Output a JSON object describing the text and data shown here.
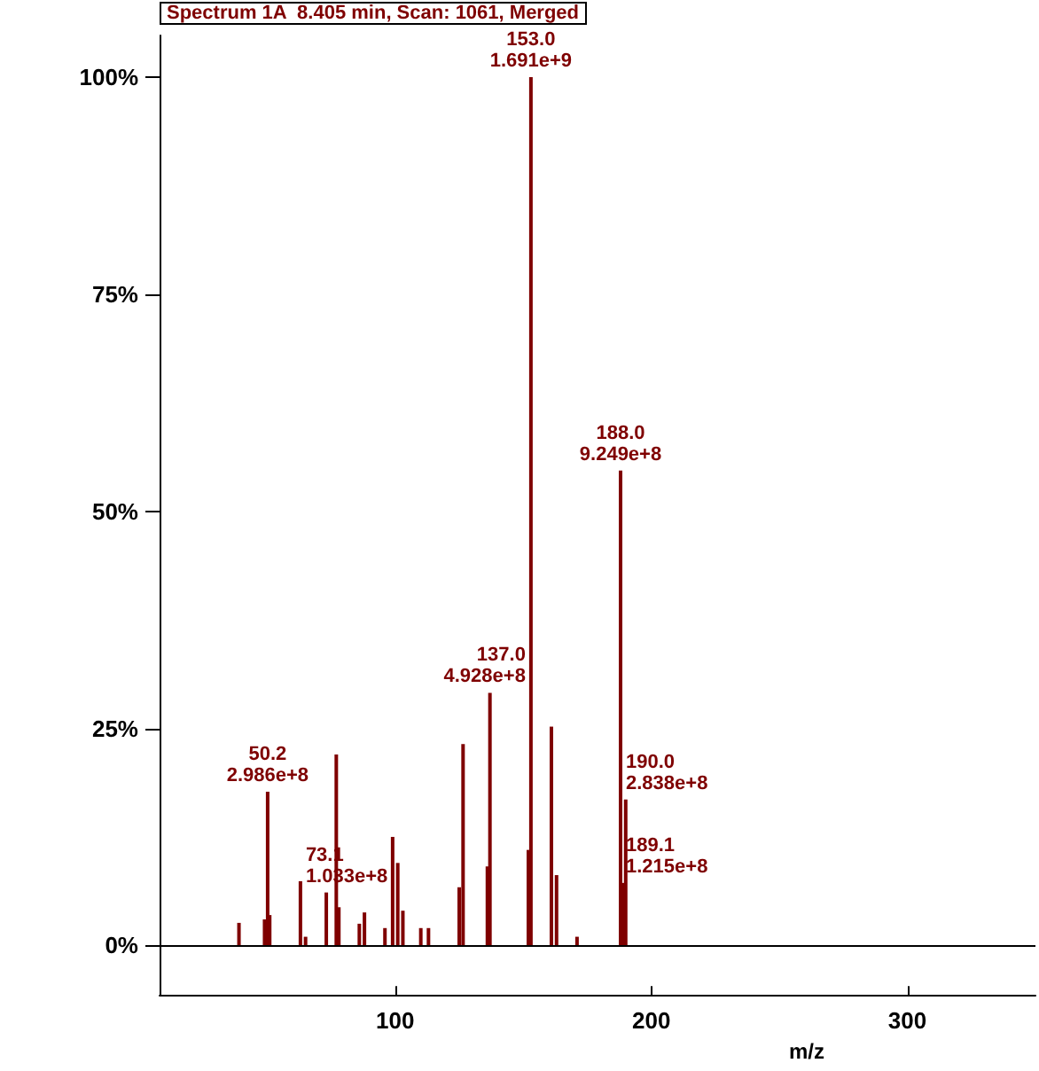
{
  "chart_data": {
    "type": "bar",
    "title": "Spectrum 1A  8.405 min, Scan: 1061, Merged",
    "xlabel": "m/z",
    "series": [
      {
        "color": "#7f0000",
        "x": [
          39,
          49,
          50.2,
          51,
          63,
          65,
          73.1,
          77,
          78,
          86,
          88,
          96,
          99,
          101,
          103,
          110,
          113,
          125,
          126.5,
          136,
          137.0,
          152,
          153.0,
          161,
          163,
          171,
          188.0,
          189.1,
          190.0
        ],
        "values": [
          2.6,
          3,
          17.7,
          3.5,
          7.4,
          1,
          6.1,
          22,
          4.4,
          2.5,
          3.8,
          2,
          12.5,
          9.5,
          4,
          2,
          2,
          6.7,
          23.2,
          9.1,
          29.1,
          11,
          100,
          25.2,
          8.1,
          1,
          54.7,
          7.2,
          16.8
        ]
      }
    ],
    "xlim": [
      8,
      350
    ],
    "xticks": [
      100,
      200,
      300
    ],
    "ylim": [
      -5.7,
      104.8
    ],
    "yticks": [
      {
        "value": 0,
        "label": "0%"
      },
      {
        "value": 25,
        "label": "25%"
      },
      {
        "value": 50,
        "label": "50%"
      },
      {
        "value": 75,
        "label": "75%"
      },
      {
        "value": 100,
        "label": "100%"
      }
    ],
    "ref_lines": [
      {
        "axis": "y",
        "value": 0,
        "color": "#000000"
      }
    ],
    "annotations": [
      {
        "text": "50.2\n2.986e+8",
        "x": 50.2,
        "y": 17.7
      },
      {
        "text": "73.1\n1.033e+8",
        "x": 73.1,
        "y": 6.1
      },
      {
        "text": "137.0\n4.928e+8",
        "x": 137.0,
        "y": 29.1
      },
      {
        "text": "153.0\n1.691e+9",
        "x": 153.0,
        "y": 100
      },
      {
        "text": "188.0\n9.249e+8",
        "x": 188.0,
        "y": 54.7
      },
      {
        "text": "190.0\n2.838e+8",
        "x": 190.0,
        "y": 16.8
      },
      {
        "text": "189.1\n1.215e+8",
        "x": 189.1,
        "y": 7.2
      }
    ],
    "grid": false
  }
}
